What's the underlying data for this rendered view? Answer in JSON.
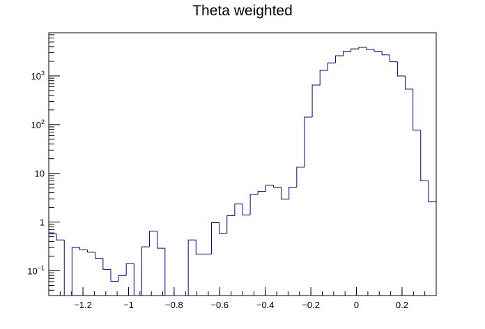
{
  "chart_data": {
    "type": "histogram",
    "title": "Theta weighted",
    "bins": [
      -1.35,
      -1.316,
      -1.282,
      -1.248,
      -1.214,
      -1.18,
      -1.146,
      -1.112,
      -1.078,
      -1.044,
      -1.01,
      -0.976,
      -0.942,
      -0.908,
      -0.874,
      -0.84,
      -0.806,
      -0.772,
      -0.738,
      -0.704,
      -0.67,
      -0.636,
      -0.602,
      -0.568,
      -0.534,
      -0.5,
      -0.466,
      -0.432,
      -0.398,
      -0.364,
      -0.33,
      -0.296,
      -0.262,
      -0.228,
      -0.194,
      -0.16,
      -0.126,
      -0.092,
      -0.058,
      -0.024,
      0.01,
      0.044,
      0.078,
      0.112,
      0.146,
      0.18,
      0.214,
      0.248,
      0.282,
      0.316,
      0.35
    ],
    "values": [
      0.57,
      0.43,
      0,
      0.3,
      0.27,
      0.24,
      0.18,
      0.107,
      0.061,
      0.08,
      0.14,
      0,
      0.31,
      0.65,
      0.29,
      0,
      0,
      0,
      0.43,
      0.22,
      0.22,
      0.97,
      0.59,
      1.35,
      2.35,
      1.4,
      3.7,
      4.25,
      5.7,
      5.2,
      2.95,
      5.2,
      13.4,
      143,
      650,
      1300,
      1850,
      2600,
      3200,
      3600,
      3850,
      3500,
      3200,
      2700,
      1950,
      1000,
      535,
      77,
      7,
      2.6
    ],
    "color": "#000099",
    "xlim": [
      -1.35,
      0.35
    ],
    "xticks": [
      {
        "value": -1.2,
        "label": "−1.2"
      },
      {
        "value": -1,
        "label": "−1"
      },
      {
        "value": -0.8,
        "label": "−0.8"
      },
      {
        "value": -0.6,
        "label": "−0.6"
      },
      {
        "value": -0.4,
        "label": "−0.4"
      },
      {
        "value": -0.2,
        "label": "−0.2"
      },
      0,
      0.2
    ],
    "ylim": [
      0.031,
      7700
    ],
    "log_y": true,
    "yticks": [
      {
        "value": 0.1,
        "label": "10",
        "exponent": "−1"
      },
      1,
      10,
      {
        "value": 100,
        "label": "10",
        "exponent": "2"
      },
      {
        "value": 1000,
        "label": "10",
        "exponent": "3"
      }
    ]
  }
}
